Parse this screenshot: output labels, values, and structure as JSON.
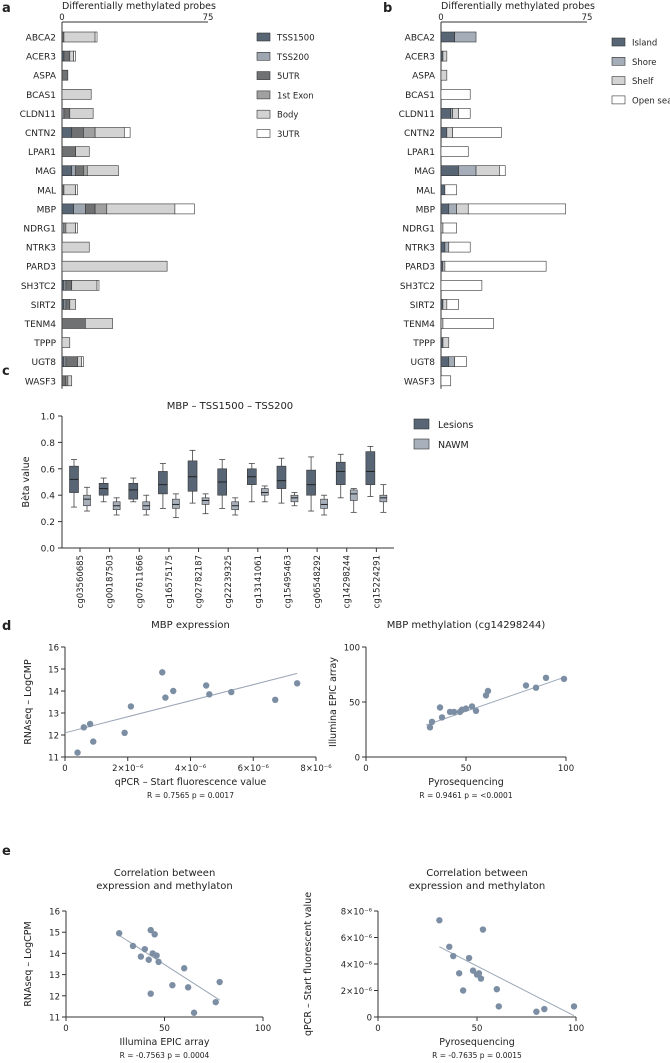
{
  "panels": {
    "a": "a",
    "b": "b",
    "c": "c",
    "d": "d",
    "e": "e"
  },
  "colors": {
    "tss1500": "#586575",
    "tss200": "#9ea7b1",
    "utr5": "#6f7173",
    "exon1": "#a0a0a0",
    "body": "#d3d3d3",
    "utr3": "#ffffff",
    "island": "#586575",
    "shore": "#a5aeb8",
    "shelf": "#d3d3d3",
    "open_sea": "#ffffff",
    "lesions": "#586575",
    "nawm": "#a7b0bb",
    "point": "#7c8ea3",
    "fit": "#9aa7b7"
  },
  "chart_data": [
    {
      "panel": "a",
      "type": "bar",
      "orientation": "horizontal",
      "stacked": true,
      "title": "Differentially methylated probes",
      "xlim": [
        0,
        75
      ],
      "ticks": [
        "0",
        "75"
      ],
      "legend_position": "right",
      "categories": [
        "ABCA2",
        "ACER3",
        "ASPA",
        "BCAS1",
        "CLDN11",
        "CNTN2",
        "LPAR1",
        "MAG",
        "MAL",
        "MBP",
        "NDRG1",
        "NTRK3",
        "PARD3",
        "SH3TC2",
        "SIRT2",
        "TENM4",
        "TPPP",
        "UGT8",
        "WASF3"
      ],
      "series": [
        {
          "name": "TSS1500",
          "key": "tss1500",
          "values": [
            0,
            1,
            0,
            0,
            0,
            5,
            0,
            5,
            0,
            6,
            0,
            0,
            0,
            1,
            1,
            0,
            0,
            1,
            0
          ]
        },
        {
          "name": "TSS200",
          "key": "tss200",
          "values": [
            0,
            0,
            0,
            0,
            1,
            0,
            0,
            2,
            0,
            6,
            1,
            0,
            0,
            1,
            1,
            0,
            0,
            1,
            0
          ]
        },
        {
          "name": "5UTR",
          "key": "utr5",
          "values": [
            1,
            3,
            3,
            0,
            3,
            6,
            7,
            4,
            1,
            5,
            0,
            0,
            0,
            3,
            2,
            12,
            0,
            6,
            2
          ]
        },
        {
          "name": "1st Exon",
          "key": "exon1",
          "values": [
            0,
            0,
            0,
            0,
            0,
            6,
            0,
            2,
            0,
            6,
            1,
            0,
            0,
            0,
            0,
            0,
            0,
            0,
            1
          ]
        },
        {
          "name": "Body",
          "key": "body",
          "values": [
            16,
            2,
            0,
            15,
            12,
            15,
            7,
            16,
            6,
            35,
            5,
            14,
            54,
            13,
            3,
            14,
            4,
            2,
            2
          ]
        },
        {
          "name": "3UTR",
          "key": "utr3",
          "values": [
            1,
            1,
            0,
            0,
            0,
            3,
            0,
            0,
            1,
            10,
            1,
            0,
            0,
            1,
            0,
            0,
            0,
            1,
            0
          ]
        }
      ]
    },
    {
      "panel": "b",
      "type": "bar",
      "orientation": "horizontal",
      "stacked": true,
      "title": "Differentially methylated probes",
      "xlim": [
        0,
        75
      ],
      "ticks": [
        "0",
        "75"
      ],
      "legend_position": "right",
      "categories": [
        "ABCA2",
        "ACER3",
        "ASPA",
        "BCAS1",
        "CLDN11",
        "CNTN2",
        "LPAR1",
        "MAG",
        "MAL",
        "MBP",
        "NDRG1",
        "NTRK3",
        "PARD3",
        "SH3TC2",
        "SIRT2",
        "TENM4",
        "TPPP",
        "UGT8",
        "WASF3"
      ],
      "series": [
        {
          "name": "Island",
          "key": "island",
          "values": [
            7,
            1,
            0,
            0,
            5,
            3,
            0,
            9,
            2,
            4,
            0,
            2,
            1,
            0,
            1,
            0,
            1,
            4,
            0
          ]
        },
        {
          "name": "Shore",
          "key": "shore",
          "values": [
            11,
            0,
            0,
            0,
            1,
            0,
            0,
            9,
            0,
            4,
            0,
            2,
            0,
            0,
            0,
            0,
            0,
            3,
            0
          ]
        },
        {
          "name": "Shelf",
          "key": "shelf",
          "values": [
            0,
            2,
            3,
            0,
            3,
            3,
            0,
            12,
            0,
            6,
            1,
            0,
            1,
            0,
            2,
            1,
            3,
            0,
            0
          ]
        },
        {
          "name": "Open sea",
          "key": "open_sea",
          "values": [
            0,
            0,
            0,
            15,
            6,
            25,
            14,
            3,
            6,
            50,
            7,
            11,
            52,
            21,
            6,
            26,
            0,
            6,
            5
          ]
        }
      ]
    },
    {
      "panel": "c",
      "type": "box",
      "title": "MBP – TSS1500 – TSS200",
      "ylabel": "Bèta value",
      "ylim": [
        0,
        1.0
      ],
      "yticks": [
        "0.0",
        "0.2",
        "0.4",
        "0.6",
        "0.8",
        "1.0"
      ],
      "categories": [
        "cg03560685",
        "cg00187503",
        "cg07611666",
        "cg16575175",
        "cg02782187",
        "cg22239325",
        "cg13141061",
        "cg15495463",
        "cg06548292",
        "cg14298244",
        "cg15224291"
      ],
      "legend_position": "right",
      "series": [
        {
          "name": "Lesions",
          "key": "lesions",
          "boxes": [
            {
              "min": 0.31,
              "q1": 0.42,
              "median": 0.52,
              "q3": 0.62,
              "max": 0.67
            },
            {
              "min": 0.35,
              "q1": 0.4,
              "median": 0.45,
              "q3": 0.49,
              "max": 0.53
            },
            {
              "min": 0.35,
              "q1": 0.37,
              "median": 0.44,
              "q3": 0.49,
              "max": 0.53
            },
            {
              "min": 0.3,
              "q1": 0.41,
              "median": 0.48,
              "q3": 0.58,
              "max": 0.64
            },
            {
              "min": 0.34,
              "q1": 0.43,
              "median": 0.54,
              "q3": 0.66,
              "max": 0.74
            },
            {
              "min": 0.3,
              "q1": 0.4,
              "median": 0.5,
              "q3": 0.6,
              "max": 0.67
            },
            {
              "min": 0.35,
              "q1": 0.48,
              "median": 0.54,
              "q3": 0.6,
              "max": 0.64
            },
            {
              "min": 0.34,
              "q1": 0.45,
              "median": 0.51,
              "q3": 0.62,
              "max": 0.68
            },
            {
              "min": 0.28,
              "q1": 0.4,
              "median": 0.48,
              "q3": 0.59,
              "max": 0.69
            },
            {
              "min": 0.38,
              "q1": 0.48,
              "median": 0.58,
              "q3": 0.65,
              "max": 0.71
            },
            {
              "min": 0.39,
              "q1": 0.48,
              "median": 0.58,
              "q3": 0.73,
              "max": 0.77
            }
          ]
        },
        {
          "name": "NAWM",
          "key": "nawm",
          "boxes": [
            {
              "min": 0.28,
              "q1": 0.32,
              "median": 0.37,
              "q3": 0.4,
              "max": 0.46
            },
            {
              "min": 0.25,
              "q1": 0.29,
              "median": 0.32,
              "q3": 0.35,
              "max": 0.38
            },
            {
              "min": 0.25,
              "q1": 0.29,
              "median": 0.32,
              "q3": 0.35,
              "max": 0.4
            },
            {
              "min": 0.23,
              "q1": 0.3,
              "median": 0.33,
              "q3": 0.37,
              "max": 0.41
            },
            {
              "min": 0.26,
              "q1": 0.33,
              "median": 0.36,
              "q3": 0.38,
              "max": 0.41
            },
            {
              "min": 0.25,
              "q1": 0.29,
              "median": 0.32,
              "q3": 0.35,
              "max": 0.38
            },
            {
              "min": 0.35,
              "q1": 0.4,
              "median": 0.42,
              "q3": 0.45,
              "max": 0.47
            },
            {
              "min": 0.32,
              "q1": 0.35,
              "median": 0.38,
              "q3": 0.4,
              "max": 0.42
            },
            {
              "min": 0.25,
              "q1": 0.3,
              "median": 0.33,
              "q3": 0.37,
              "max": 0.4
            },
            {
              "min": 0.27,
              "q1": 0.36,
              "median": 0.41,
              "q3": 0.44,
              "max": 0.45
            },
            {
              "min": 0.27,
              "q1": 0.35,
              "median": 0.38,
              "q3": 0.4,
              "max": 0.48
            }
          ]
        }
      ]
    },
    {
      "panel": "d-left",
      "type": "scatter",
      "title": "MBP expression",
      "xlabel": "qPCR – Start fluorescence value",
      "ylabel": "RNAseq – LogCMP",
      "xlim": [
        0,
        8e-06
      ],
      "ylim": [
        11,
        16
      ],
      "xticks": [
        {
          "v": 0,
          "label": "0"
        },
        {
          "v": 2e-06,
          "label": "2×10⁻⁶"
        },
        {
          "v": 4e-06,
          "label": "4×10⁻⁶"
        },
        {
          "v": 6e-06,
          "label": "6×10⁻⁶"
        },
        {
          "v": 8e-06,
          "label": "8×10⁻⁶"
        }
      ],
      "yticks": [
        11,
        12,
        13,
        14,
        15,
        16
      ],
      "x": [
        4e-07,
        6e-07,
        8e-07,
        9e-07,
        1.9e-06,
        2.1e-06,
        3.1e-06,
        3.2e-06,
        3.45e-06,
        4.5e-06,
        4.6e-06,
        5.3e-06,
        6.7e-06,
        7.4e-06
      ],
      "y": [
        11.2,
        12.35,
        12.5,
        11.7,
        12.1,
        13.3,
        14.85,
        13.7,
        14.0,
        14.25,
        13.85,
        13.95,
        13.6,
        14.35
      ],
      "fit": {
        "x": [
          0,
          7.4e-06
        ],
        "y": [
          12.1,
          14.8
        ]
      },
      "stats": "R = 0.7565   p = 0.0017"
    },
    {
      "panel": "d-right",
      "type": "scatter",
      "title": "MBP methylation (cg14298244)",
      "xlabel": "Pyrosequencing",
      "ylabel": "Illumina EPIC array",
      "xlim": [
        0,
        100
      ],
      "ylim": [
        0,
        100
      ],
      "xticks": [
        {
          "v": 0,
          "label": "0"
        },
        {
          "v": 50,
          "label": "50"
        },
        {
          "v": 100,
          "label": "100"
        }
      ],
      "yticks": [
        0,
        50,
        100
      ],
      "x": [
        32,
        33,
        37,
        38,
        42,
        44,
        47,
        48,
        50,
        53,
        55,
        60,
        61,
        80,
        85,
        90,
        99
      ],
      "y": [
        27,
        32,
        45,
        36,
        41,
        41,
        41,
        43,
        44,
        46,
        42,
        56,
        60,
        65,
        63,
        72,
        71
      ],
      "fit": {
        "x": [
          30,
          100
        ],
        "y": [
          29,
          73
        ]
      },
      "stats": "R = 0.9461   p = <0.0001"
    },
    {
      "panel": "e-left",
      "type": "scatter",
      "title": "Correlation between expression and methylaton",
      "title_lines": [
        "Correlation between",
        "expression and methylaton"
      ],
      "xlabel": "Illumina EPIC array",
      "ylabel": "RNAseq – LogCPM",
      "xlim": [
        0,
        100
      ],
      "ylim": [
        11,
        16
      ],
      "xticks": [
        {
          "v": 0,
          "label": "0"
        },
        {
          "v": 50,
          "label": "50"
        },
        {
          "v": 100,
          "label": "100"
        }
      ],
      "yticks": [
        11,
        12,
        13,
        14,
        15,
        16
      ],
      "x": [
        27,
        34,
        38,
        40,
        42,
        43,
        44,
        45,
        46,
        47,
        43,
        60,
        54,
        62,
        65,
        76,
        78
      ],
      "y": [
        14.95,
        14.35,
        13.85,
        14.2,
        13.7,
        15.1,
        14.0,
        14.9,
        13.9,
        13.6,
        12.1,
        13.3,
        12.5,
        12.4,
        11.2,
        11.7,
        12.65
      ],
      "fit": {
        "x": [
          27,
          78
        ],
        "y": [
          14.85,
          11.8
        ]
      },
      "stats": "R = -0.7563   p = 0.0004"
    },
    {
      "panel": "e-right",
      "type": "scatter",
      "title": "Correlation between expression and methylaton",
      "title_lines": [
        "Correlation between",
        "expression and methylaton"
      ],
      "xlabel": "Pyrosequencing",
      "ylabel": "qPCR – Start fluorescent value",
      "xlim": [
        0,
        100
      ],
      "ylim": [
        0,
        8e-06
      ],
      "xticks": [
        {
          "v": 0,
          "label": "0"
        },
        {
          "v": 50,
          "label": "50"
        },
        {
          "v": 100,
          "label": "100"
        }
      ],
      "yticks": [
        {
          "v": 0,
          "label": "0"
        },
        {
          "v": 2e-06,
          "label": "2×10⁻⁶"
        },
        {
          "v": 4e-06,
          "label": "4×10⁻⁶"
        },
        {
          "v": 6e-06,
          "label": "6×10⁻⁶"
        },
        {
          "v": 8e-06,
          "label": "8×10⁻⁶"
        }
      ],
      "x": [
        31,
        36,
        38,
        41,
        43,
        46,
        48,
        50,
        51,
        52,
        53,
        60,
        61,
        80,
        84,
        99
      ],
      "y": [
        7.3e-06,
        5.3e-06,
        4.6e-06,
        3.3e-06,
        2e-06,
        4.45e-06,
        3.5e-06,
        3.2e-06,
        3.3e-06,
        2.9e-06,
        6.6e-06,
        2.1e-06,
        8e-07,
        4e-07,
        6e-07,
        8e-07
      ],
      "fit": {
        "x": [
          31,
          99
        ],
        "y": [
          5.3e-06,
          1e-07
        ]
      },
      "stats": "R = -0.7635   p = 0.0015"
    }
  ]
}
